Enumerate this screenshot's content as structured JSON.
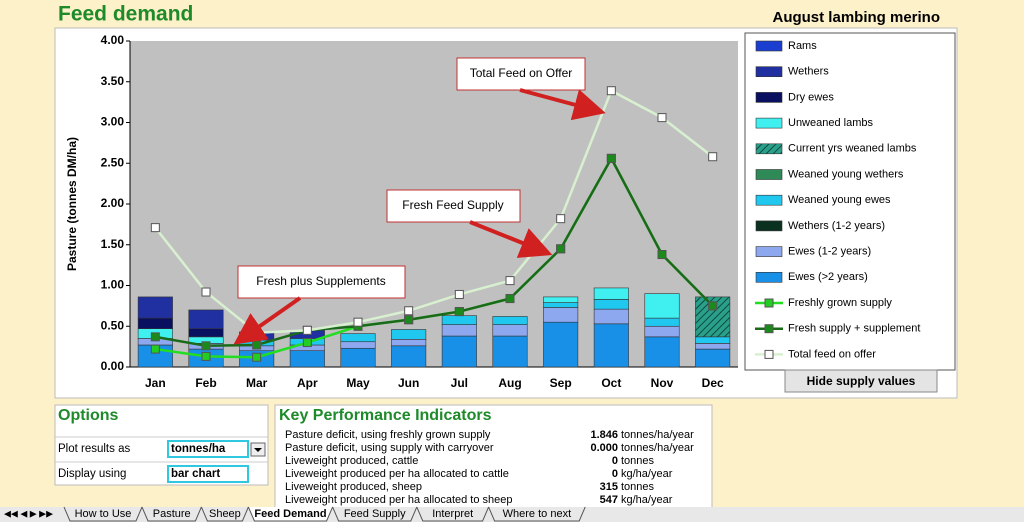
{
  "header": {
    "title": "Feed demand",
    "subtitle": "August lambing merino"
  },
  "chart_data": {
    "type": "stacked-bar-line",
    "y_label": "Pasture (tonnes DM/ha)",
    "categories": [
      "Jan",
      "Feb",
      "Mar",
      "Apr",
      "May",
      "Jun",
      "Jul",
      "Aug",
      "Sep",
      "Oct",
      "Nov",
      "Dec"
    ],
    "ylim": [
      0,
      4
    ],
    "yticks": [
      {
        "value": 0,
        "label": "0.00"
      },
      {
        "value": 0.5,
        "label": "0.50"
      },
      {
        "value": 1,
        "label": "1.00"
      },
      {
        "value": 1.5,
        "label": "1.50"
      },
      {
        "value": 2,
        "label": "2.00"
      },
      {
        "value": 2.5,
        "label": "2.50"
      },
      {
        "value": 3,
        "label": "3.00"
      },
      {
        "value": 3.5,
        "label": "3.50"
      },
      {
        "value": 4,
        "label": "4.00"
      }
    ],
    "series": [
      {
        "name": "Rams",
        "kind": "bar",
        "color": "#1a3fd0",
        "values": [
          0,
          0,
          0,
          0,
          0,
          0,
          0,
          0,
          0,
          0,
          0,
          0
        ]
      },
      {
        "name": "Wethers",
        "kind": "bar",
        "color": "#2030a0",
        "values": [
          0.26,
          0.23,
          0.1,
          0.1,
          0,
          0,
          0,
          0,
          0,
          0,
          0,
          0
        ]
      },
      {
        "name": "Dry ewes",
        "kind": "bar",
        "color": "#0a1060",
        "values": [
          0.13,
          0.1,
          0,
          0,
          0,
          0,
          0,
          0,
          0,
          0,
          0,
          0
        ]
      },
      {
        "name": "Unweaned lambs",
        "kind": "bar",
        "color": "#40f0f0",
        "values": [
          0.12,
          0.08,
          0,
          0,
          0,
          0,
          0,
          0,
          0.07,
          0.14,
          0.3,
          0
        ]
      },
      {
        "name": "Current yrs weaned lambs",
        "kind": "bar",
        "color": "#1f8a78",
        "hatch": true,
        "values": [
          0,
          0,
          0,
          0,
          0,
          0,
          0,
          0,
          0,
          0,
          0,
          0.49
        ]
      },
      {
        "name": "Weaned young wethers",
        "kind": "bar",
        "color": "#2e8b57",
        "values": [
          0,
          0,
          0,
          0,
          0,
          0,
          0,
          0,
          0,
          0,
          0,
          0
        ]
      },
      {
        "name": "Weaned young ewes",
        "kind": "bar",
        "color": "#20c8f0",
        "values": [
          0,
          0,
          0.07,
          0.08,
          0.1,
          0.12,
          0.11,
          0.1,
          0.06,
          0.12,
          0.1,
          0.08
        ]
      },
      {
        "name": "Wethers (1-2 years)",
        "kind": "bar",
        "color": "#0a3020",
        "values": [
          0,
          0,
          0,
          0,
          0,
          0,
          0,
          0,
          0,
          0,
          0,
          0
        ]
      },
      {
        "name": "Ewes (1-2 years)",
        "kind": "bar",
        "color": "#8ea8f0",
        "values": [
          0.08,
          0.07,
          0.06,
          0.07,
          0.08,
          0.08,
          0.14,
          0.14,
          0.18,
          0.18,
          0.13,
          0.07
        ]
      },
      {
        "name": "Ewes (>2 years)",
        "kind": "bar",
        "color": "#1890e8",
        "values": [
          0.27,
          0.22,
          0.2,
          0.2,
          0.23,
          0.26,
          0.38,
          0.38,
          0.55,
          0.53,
          0.37,
          0.22
        ]
      },
      {
        "name": "Freshly grown supply",
        "kind": "line",
        "color": "#22dd22",
        "marker": "#22cc22",
        "values": [
          0.22,
          0.13,
          0.12,
          0.3,
          0.5,
          0.58,
          0.68,
          0.84,
          1.45,
          2.56,
          1.38,
          0.75
        ]
      },
      {
        "name": "Fresh supply + supplement",
        "kind": "line",
        "color": "#1a6a1a",
        "marker": "#1a8a1a",
        "values": [
          0.37,
          0.26,
          0.27,
          0.45,
          0.5,
          0.58,
          0.68,
          0.84,
          1.45,
          2.56,
          1.38,
          0.75
        ]
      },
      {
        "name": "Total feed on offer",
        "kind": "line",
        "color": "#d8f0d0",
        "marker": "#ffffff",
        "values": [
          1.71,
          0.92,
          0.42,
          0.45,
          0.55,
          0.69,
          0.89,
          1.06,
          1.82,
          3.39,
          3.06,
          2.58
        ]
      }
    ],
    "annotations": [
      "Total Feed on Offer",
      "Fresh Feed Supply",
      "Fresh plus Supplements"
    ],
    "button": "Hide supply values"
  },
  "options": {
    "title": "Options",
    "rows": [
      [
        "Plot results as",
        "tonnes/ha"
      ],
      [
        "Display using",
        "bar chart"
      ]
    ]
  },
  "kpi": {
    "title": "Key Performance Indicators",
    "rows": [
      [
        "Pasture deficit, using freshly grown supply",
        "1.846",
        "tonnes/ha/year"
      ],
      [
        "Pasture deficit, using supply with carryover",
        "0.000",
        "tonnes/ha/year"
      ],
      [
        "Liveweight produced, cattle",
        "0",
        "tonnes"
      ],
      [
        "Liveweight produced per ha allocated to cattle",
        "0",
        "kg/ha/year"
      ],
      [
        "Liveweight produced, sheep",
        "315",
        "tonnes"
      ],
      [
        "Liveweight produced per ha allocated to sheep",
        "547",
        "kg/ha/year"
      ]
    ]
  },
  "tabs": [
    "How to Use",
    "Pasture",
    "Sheep",
    "Feed Demand",
    "Feed Supply",
    "Interpret",
    "Where to next"
  ]
}
